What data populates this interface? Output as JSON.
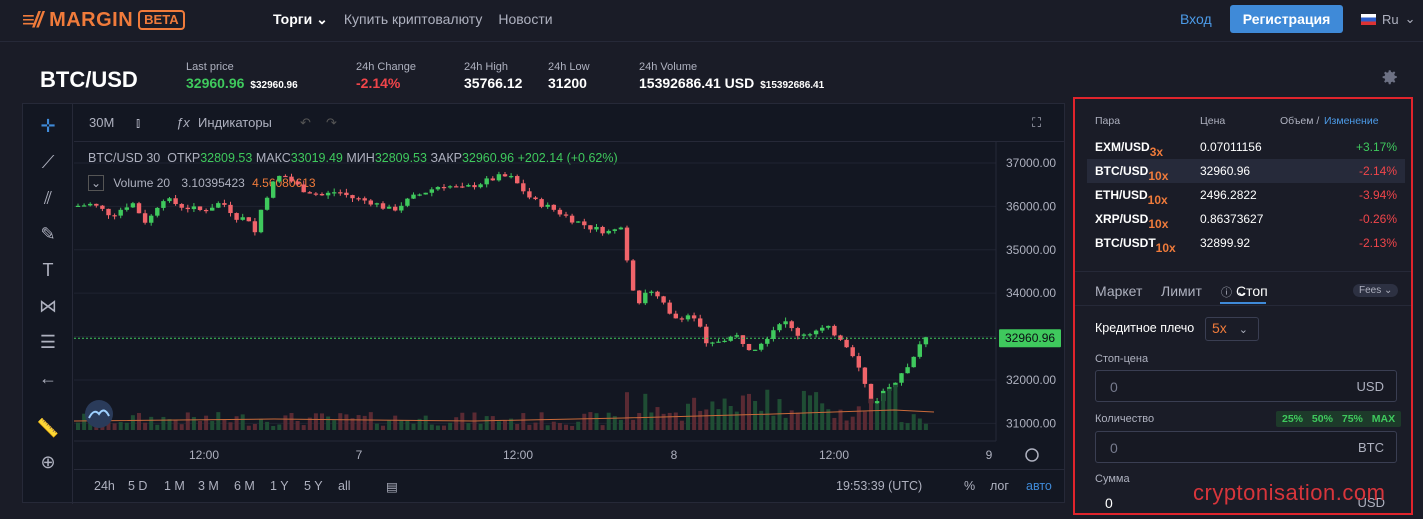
{
  "nav": {
    "logo": "MARGIN",
    "beta": "BETA",
    "links": [
      "Торги",
      "Купить криптовалюту",
      "Новости"
    ],
    "login": "Вход",
    "register": "Регистрация",
    "lang": "Ru"
  },
  "ticker": {
    "pair": "BTC/USD",
    "last_price_label": "Last price",
    "last_price": "32960.96",
    "last_price_usd": "$32960.96",
    "change_label": "24h Change",
    "change": "-2.14%",
    "high_label": "24h High",
    "high": "35766.12",
    "low_label": "24h Low",
    "low": "31200",
    "volume_label": "24h Volume",
    "volume": "15392686.41 USD",
    "volume_usd": "$15392686.41"
  },
  "chart": {
    "interval": "30M",
    "indicators": "Индикаторы",
    "legend_pair": "BTC/USD",
    "legend_interval": "30",
    "open_label": "ОТКР",
    "open": "32809.53",
    "high_label": "МАКС",
    "high": "33019.49",
    "low_label": "МИН",
    "low": "32809.53",
    "close_label": "ЗАКР",
    "close": "32960.96",
    "change": "+202.14 (+0.62%)",
    "volume_label": "Volume 20",
    "volume_a": "3.10395423",
    "volume_b": "4.56080613",
    "price_ticks": [
      "37000.00",
      "36000.00",
      "35000.00",
      "34000.00",
      "33000.00",
      "32000.00",
      "31000.00"
    ],
    "current_price": "32960.96",
    "time_ticks": [
      "12:00",
      "7",
      "12:00",
      "8",
      "12:00",
      "9"
    ],
    "ranges": [
      "24h",
      "5 D",
      "1 M",
      "3 M",
      "6 M",
      "1 Y",
      "5 Y",
      "all"
    ],
    "clock": "19:53:39 (UTC)",
    "pct": "%",
    "log": "лог",
    "auto": "авто"
  },
  "markets": {
    "head_pair": "Пара",
    "head_price": "Цена",
    "head_volume": "Объем /",
    "head_change": "Изменение",
    "rows": [
      {
        "pair": "EXM/USD",
        "lev": "3x",
        "price": "0.07011156",
        "change": "+3.17%",
        "dir": "up"
      },
      {
        "pair": "BTC/USD",
        "lev": "10x",
        "price": "32960.96",
        "change": "-2.14%",
        "dir": "down"
      },
      {
        "pair": "ETH/USD",
        "lev": "10x",
        "price": "2496.2822",
        "change": "-3.94%",
        "dir": "down"
      },
      {
        "pair": "XRP/USD",
        "lev": "10x",
        "price": "0.86373627",
        "change": "-0.26%",
        "dir": "down"
      },
      {
        "pair": "BTC/USDT",
        "lev": "10x",
        "price": "32899.92",
        "change": "-2.13%",
        "dir": "down"
      }
    ]
  },
  "order": {
    "tab_market": "Маркет",
    "tab_limit": "Лимит",
    "tab_stop": "Стоп",
    "fees": "Fees",
    "leverage_label": "Кредитное плечо",
    "leverage": "5x",
    "stop_price_label": "Стоп-цена",
    "stop_price": "0",
    "stop_unit": "USD",
    "qty_label": "Количество",
    "pcts": "25% 50% 75% MAX",
    "qty": "0",
    "qty_unit": "BTC",
    "sum_label": "Сумма",
    "sum": "0",
    "sum_unit": "USD"
  },
  "watermark": "cryptonisation.com",
  "colors": {
    "accent": "#f07b3b",
    "up": "#3fc95d",
    "down": "#f0454a",
    "link": "#3f8ad8",
    "highlight": "#e0242c"
  }
}
